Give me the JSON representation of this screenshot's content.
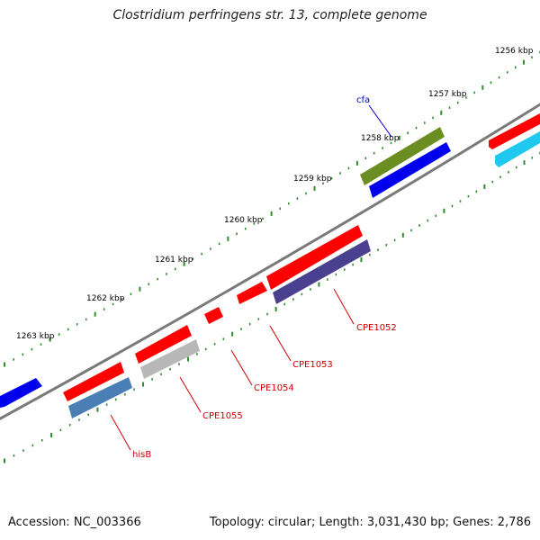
{
  "title": "Clostridium perfringens str. 13, complete genome",
  "footer": {
    "accession": "Accession: NC_003366",
    "topology": "Topology: circular; Length: 3,031,430 bp; Genes: 2,786"
  },
  "colors": {
    "backbone": "#7a7a7a",
    "tick": "#2e8b2e",
    "gene_label": "#cc0000",
    "cfa_label": "#0000cc",
    "red_feature": "#ff0000"
  },
  "scale": {
    "ticks": [
      {
        "label": "1256 kbp"
      },
      {
        "label": "1257 kbp"
      },
      {
        "label": "1258 kbp"
      },
      {
        "label": "1259 kbp"
      },
      {
        "label": "1260 kbp"
      },
      {
        "label": "1261 kbp"
      },
      {
        "label": "1262 kbp"
      },
      {
        "label": "1263 kbp"
      }
    ]
  },
  "genes": [
    {
      "name": "cfa",
      "color": "#6b8e23"
    },
    {
      "name": "CPE1052",
      "color": "#4b3f8f"
    },
    {
      "name": "CPE1053",
      "color": "#ff0000"
    },
    {
      "name": "CPE1054",
      "color": "#ff0000"
    },
    {
      "name": "CPE1055",
      "color": "#b8b8b8"
    },
    {
      "name": "hisB",
      "color": "#4a7fb5"
    }
  ]
}
